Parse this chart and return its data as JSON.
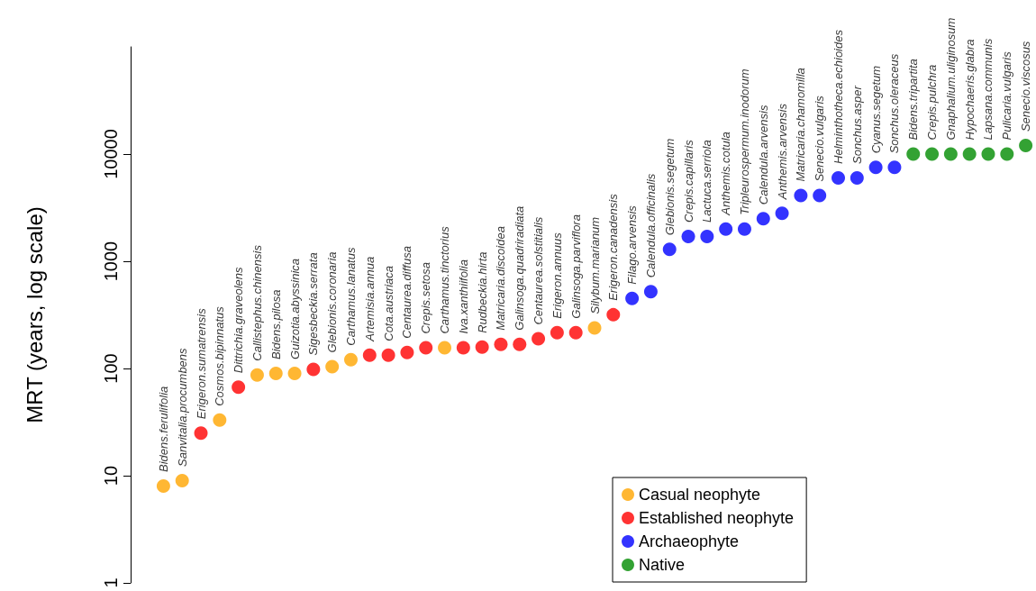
{
  "chart_data": {
    "type": "scatter",
    "ylabel": "MRT (years, log scale)",
    "categories": [
      "Bidens.ferulifolia",
      "Sanvitalia.procumbens",
      "Erigeron.sumatrensis",
      "Cosmos.bipinnatus",
      "Dittrichia.graveolens",
      "Callistephus.chinensis",
      "Bidens.pilosa",
      "Guizotia.abyssinica",
      "Sigesbeckia.serrata",
      "Glebionis.coronaria",
      "Carthamus.lanatus",
      "Artemisia.annua",
      "Cota.austriaca",
      "Centaurea.diffusa",
      "Crepis.setosa",
      "Carthamus.tinctorius",
      "Iva.xanthiifolia",
      "Rudbeckia.hirta",
      "Matricaria.discoidea",
      "Galinsoga.quadriradiata",
      "Centaurea.solstitialis",
      "Erigeron.annuus",
      "Galinsoga.parviflora",
      "Silybum.marianum",
      "Erigeron.canadensis",
      "Filago.arvensis",
      "Calendula.officinalis",
      "Glebionis.segetum",
      "Crepis.capillaris",
      "Lactuca.serriola",
      "Anthemis.cotula",
      "Tripleurospermum.inodorum",
      "Calendula.arvensis",
      "Anthemis.arvensis",
      "Matricaria.chamomilla",
      "Senecio.vulgaris",
      "Helminthotheca.echioides",
      "Sonchus.asper",
      "Cyanus.segetum",
      "Sonchus.oleraceus",
      "Bidens.tripartita",
      "Crepis.pulchra",
      "Gnaphalium.uliginosum",
      "Hypochaeris.glabra",
      "Lapsana.communis",
      "Pulicaria.vulgaris",
      "Senecio.viscosus"
    ],
    "series": [
      {
        "name": "Casual neophyte",
        "color": "#ffa500",
        "values": [
          8,
          9,
          null,
          33,
          null,
          87,
          90,
          90,
          null,
          104,
          121,
          null,
          null,
          null,
          null,
          156,
          null,
          null,
          null,
          null,
          null,
          null,
          null,
          239,
          null,
          null,
          null,
          null,
          null,
          null,
          null,
          null,
          null,
          null,
          null,
          null,
          null,
          null,
          null,
          null,
          null,
          null,
          null,
          null,
          null,
          null,
          null
        ]
      },
      {
        "name": "Established neophyte",
        "color": "#ff0000",
        "values": [
          null,
          null,
          25,
          null,
          67,
          null,
          null,
          null,
          98,
          null,
          null,
          133,
          133,
          141,
          156,
          null,
          156,
          158,
          168,
          168,
          189,
          216,
          216,
          null,
          317,
          null,
          null,
          null,
          null,
          null,
          null,
          null,
          null,
          null,
          null,
          null,
          null,
          null,
          null,
          null,
          null,
          null,
          null,
          null,
          null,
          null,
          null
        ]
      },
      {
        "name": "Archaeophyte",
        "color": "#0000ff",
        "values": [
          null,
          null,
          null,
          null,
          null,
          null,
          null,
          null,
          null,
          null,
          null,
          null,
          null,
          null,
          null,
          null,
          null,
          null,
          null,
          null,
          null,
          null,
          null,
          null,
          null,
          451,
          520,
          1290,
          1700,
          1700,
          2000,
          2000,
          2500,
          2800,
          4100,
          4100,
          6000,
          6000,
          7500,
          7500,
          null,
          null,
          null,
          null,
          null,
          null,
          null
        ]
      },
      {
        "name": "Native",
        "color": "#008b00",
        "values": [
          null,
          null,
          null,
          null,
          null,
          null,
          null,
          null,
          null,
          null,
          null,
          null,
          null,
          null,
          null,
          null,
          null,
          null,
          null,
          null,
          null,
          null,
          null,
          null,
          null,
          null,
          null,
          null,
          null,
          null,
          null,
          null,
          null,
          null,
          null,
          null,
          null,
          null,
          null,
          null,
          10000,
          10000,
          10000,
          10000,
          10000,
          10000,
          12000
        ]
      }
    ],
    "log": "y",
    "ylim": [
      1,
      100000
    ],
    "yticks": [
      1,
      10,
      100,
      1000,
      10000
    ],
    "tick_labels": "y",
    "marker": "circle",
    "legend": "bottom right"
  }
}
